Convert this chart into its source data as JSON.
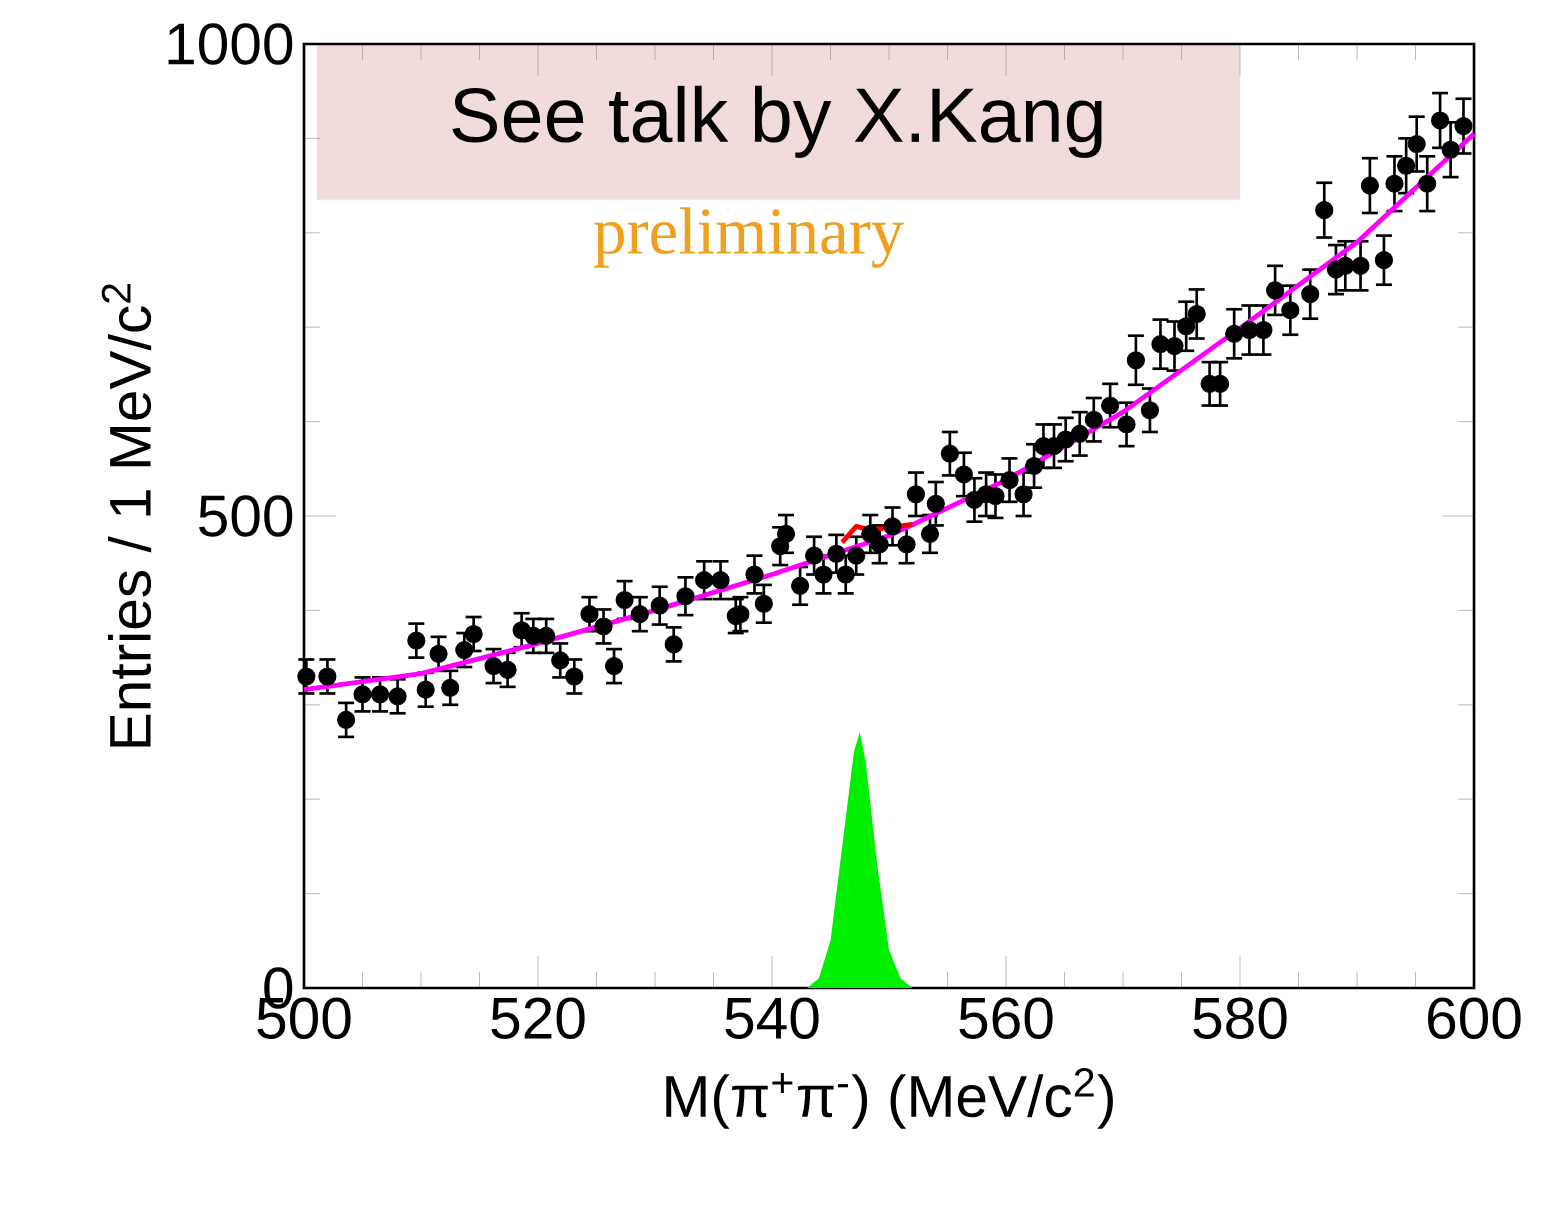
{
  "chart_data": {
    "type": "scatter",
    "xlabel": "M(π$^{+}$π$^{-}$) (MeV/c$^{2}$)",
    "ylabel": "Entries / 1 MeV/c$^{2}$",
    "annotations": [
      "See talk by X.Kang",
      "preliminary"
    ],
    "xlim": [
      500,
      600
    ],
    "xticks": [
      500,
      520,
      540,
      560,
      580,
      600
    ],
    "ylim": [
      0,
      1000
    ],
    "yticks": [
      0,
      500,
      1000
    ],
    "series": [
      {
        "color": "#000000",
        "marker": "circle",
        "x": [
          500.2,
          502,
          503.6,
          505,
          506.5,
          508,
          509.6,
          510.4,
          511.5,
          512.5,
          513.7,
          514.5,
          516.2,
          517.4,
          518.6,
          519.6,
          520.7,
          521.9,
          523.1,
          524.4,
          525.6,
          526.5,
          527.4,
          528.7,
          530.4,
          531.6,
          532.6,
          534.2,
          535.6,
          536.9,
          537.3,
          538.5,
          539.3,
          540.7,
          541.2,
          542.4,
          543.6,
          544.4,
          545.5,
          546.3,
          547.2,
          548.4,
          549.2,
          550.3,
          551.5,
          552.3,
          553.5,
          554,
          555.2,
          556.4,
          557.3,
          558.3,
          559.1,
          560.3,
          561.5,
          562.4,
          563.2,
          564.1,
          565.1,
          566.3,
          567.5,
          568.9,
          570.3,
          571.1,
          572.3,
          573.2,
          574.4,
          575.4,
          576.3,
          577.4,
          578.3,
          579.5,
          580.8,
          582,
          583,
          584.3,
          586,
          587.2,
          588.2,
          589,
          590.3,
          591.1,
          592.3,
          593.2,
          594.2,
          595.1,
          596,
          597.1,
          598,
          599.1
        ],
        "values": [
          330,
          330,
          284,
          311,
          311,
          309,
          368,
          316,
          354,
          318,
          358,
          375,
          341,
          337,
          379,
          373,
          373,
          347,
          330,
          396,
          383,
          341,
          411,
          396,
          405,
          364,
          415,
          432,
          432,
          394,
          396,
          438,
          407,
          468,
          481,
          426,
          458,
          438,
          460,
          438,
          458,
          481,
          470,
          489,
          470,
          523,
          481,
          513,
          566,
          544,
          517,
          523,
          521,
          538,
          523,
          553,
          574,
          574,
          581,
          587,
          602,
          617,
          597,
          665,
          612,
          682,
          680,
          701,
          714,
          640,
          640,
          693,
          697,
          697,
          739,
          718,
          735,
          824,
          761,
          765,
          765,
          850,
          771,
          852,
          871,
          894,
          852,
          919,
          888,
          913
        ],
        "errors": [
          18,
          18,
          18,
          18,
          18,
          18,
          18,
          18,
          18,
          18,
          18,
          18,
          18,
          18,
          18,
          18,
          18,
          18,
          18,
          18,
          18,
          18,
          20,
          18,
          20,
          18,
          20,
          20,
          20,
          18,
          18,
          20,
          20,
          20,
          20,
          20,
          20,
          20,
          20,
          20,
          20,
          20,
          20,
          20,
          20,
          23,
          20,
          23,
          23,
          23,
          23,
          23,
          23,
          23,
          23,
          23,
          23,
          23,
          23,
          23,
          23,
          23,
          23,
          26,
          23,
          26,
          26,
          26,
          26,
          23,
          23,
          26,
          26,
          26,
          26,
          26,
          26,
          29,
          26,
          26,
          26,
          29,
          26,
          29,
          29,
          29,
          29,
          29,
          29,
          29
        ]
      },
      {
        "type": "line",
        "color": "#ff00ff",
        "marker": "none",
        "x": [
          500,
          510,
          520,
          530,
          540,
          550,
          560,
          570,
          580,
          590,
          600
        ],
        "values": [
          316,
          333,
          365,
          400,
          438,
          479,
          538,
          610,
          699,
          790,
          905
        ]
      },
      {
        "type": "line",
        "color": "#ff0000",
        "marker": "none",
        "x": [
          546,
          547.2,
          548.4,
          550.6,
          552
        ],
        "values": [
          472,
          489,
          485,
          489,
          491
        ]
      },
      {
        "type": "area",
        "color": "#00ee00",
        "x": [
          543,
          544,
          545,
          546,
          547,
          547.5,
          548,
          549,
          550,
          551,
          552
        ],
        "values": [
          0,
          10,
          50,
          150,
          250,
          271,
          240,
          130,
          40,
          10,
          0
        ]
      }
    ]
  }
}
